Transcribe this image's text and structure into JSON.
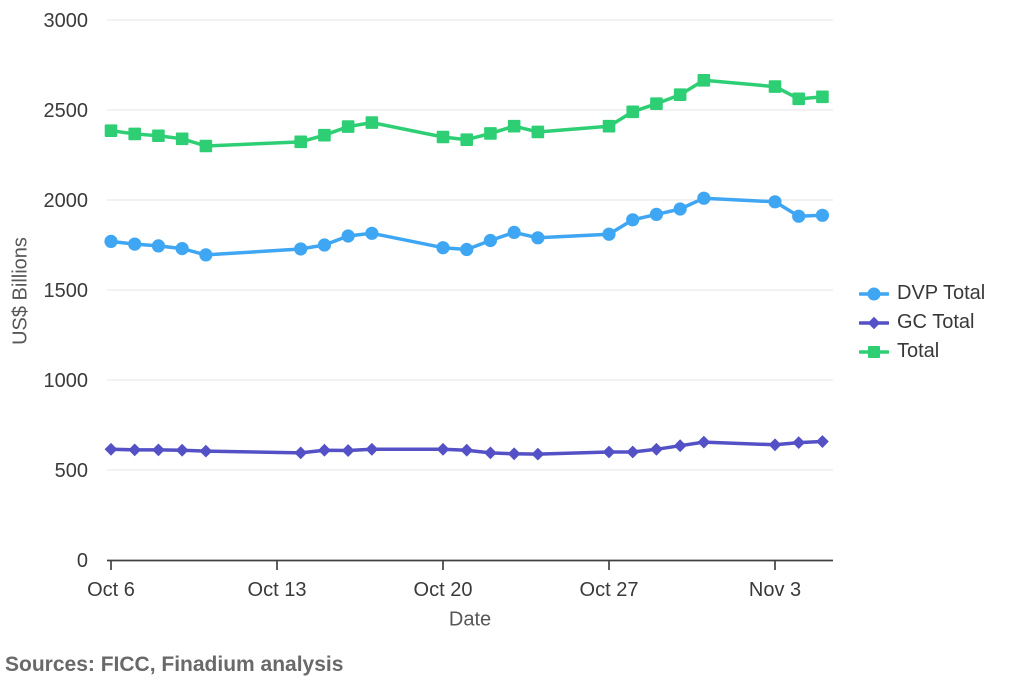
{
  "chart_data": {
    "type": "line",
    "title": "",
    "xlabel": "Date",
    "ylabel": "US$ Billions",
    "ylim": [
      0,
      3000
    ],
    "grid": "horizontal-only",
    "legend_position": "right",
    "y_ticks": [
      0,
      500,
      1000,
      1500,
      2000,
      2500,
      3000
    ],
    "x_ticks": [
      {
        "label": "Oct 6",
        "day": 0
      },
      {
        "label": "Oct 13",
        "day": 7
      },
      {
        "label": "Oct 20",
        "day": 14
      },
      {
        "label": "Oct 27",
        "day": 21
      },
      {
        "label": "Nov 3",
        "day": 28
      }
    ],
    "x": [
      "Oct 6",
      "Oct 7",
      "Oct 8",
      "Oct 9",
      "Oct 10",
      "Oct 14",
      "Oct 15",
      "Oct 16",
      "Oct 17",
      "Oct 20",
      "Oct 21",
      "Oct 22",
      "Oct 23",
      "Oct 24",
      "Oct 27",
      "Oct 28",
      "Oct 29",
      "Oct 30",
      "Oct 31",
      "Nov 3",
      "Nov 4",
      "Nov 5"
    ],
    "x_days": [
      0,
      1,
      2,
      3,
      4,
      8,
      9,
      10,
      11,
      14,
      15,
      16,
      17,
      18,
      21,
      22,
      23,
      24,
      25,
      28,
      29,
      30
    ],
    "series": [
      {
        "name": "DVP Total",
        "color": "#3ea6f2",
        "marker": "circle",
        "values": [
          1770,
          1755,
          1745,
          1730,
          1695,
          1728,
          1750,
          1800,
          1815,
          1735,
          1725,
          1775,
          1820,
          1790,
          1810,
          1890,
          1920,
          1950,
          2010,
          1990,
          1910,
          1915
        ]
      },
      {
        "name": "GC Total",
        "color": "#5351c5",
        "marker": "diamond",
        "values": [
          615,
          612,
          612,
          610,
          605,
          595,
          610,
          608,
          615,
          615,
          610,
          595,
          590,
          588,
          600,
          600,
          615,
          635,
          655,
          640,
          652,
          658
        ]
      },
      {
        "name": "Total",
        "color": "#2ecf74",
        "marker": "square",
        "values": [
          2385,
          2367,
          2357,
          2340,
          2300,
          2323,
          2360,
          2408,
          2430,
          2350,
          2335,
          2370,
          2410,
          2378,
          2410,
          2490,
          2535,
          2585,
          2665,
          2630,
          2562,
          2573
        ]
      }
    ]
  },
  "style": {
    "background": "#ffffff",
    "gridline_color": "#eaeaea",
    "axis_color": "#414141",
    "tick_text_color": "#3a3a3a",
    "axis_title_color": "#575757",
    "legend_text_color": "#383838",
    "source_text_color": "#696969"
  },
  "footer": {
    "source_note": "Sources: FICC, Finadium analysis"
  }
}
